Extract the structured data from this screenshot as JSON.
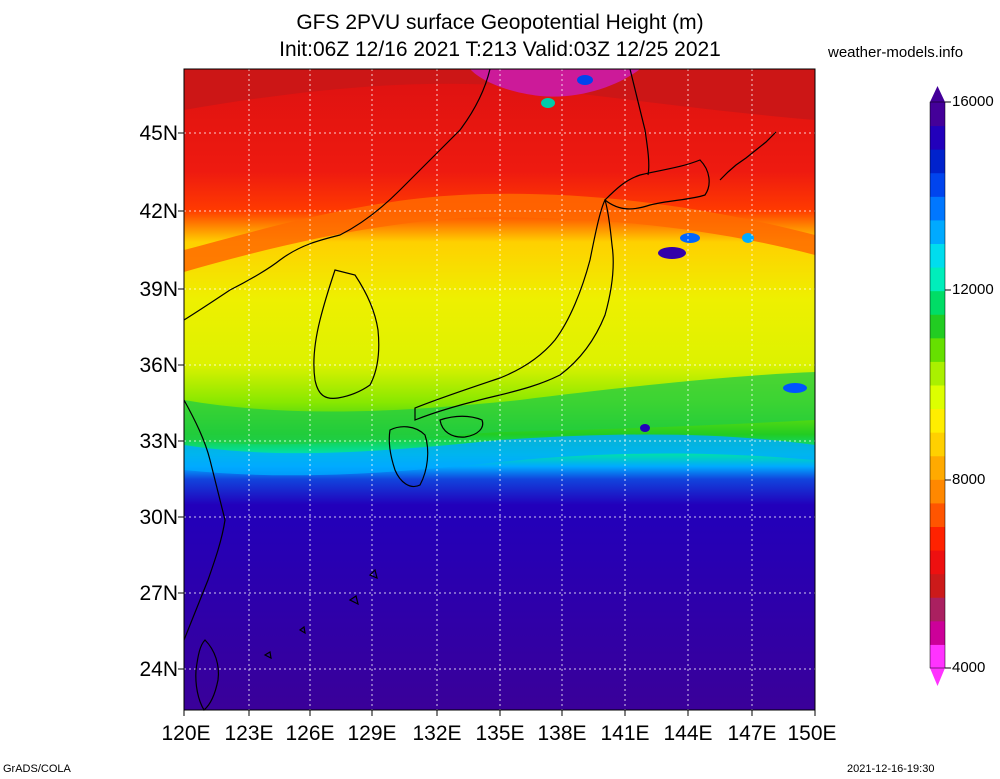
{
  "title_line1": "GFS 2PVU surface Geopotential Height (m)",
  "title_line2": "Init:06Z 12/16 2021 T:213 Valid:03Z 12/25 2021",
  "site": "weather-models.info",
  "lat_labels": [
    "45N",
    "42N",
    "39N",
    "36N",
    "33N",
    "30N",
    "27N",
    "24N"
  ],
  "lon_labels": [
    "120E",
    "123E",
    "126E",
    "129E",
    "132E",
    "135E",
    "138E",
    "141E",
    "144E",
    "147E",
    "150E"
  ],
  "colorbar": {
    "labels": [
      "16000",
      "12000",
      "8000",
      "4000"
    ],
    "min": 4000,
    "max": 16000,
    "colors": [
      "#ff33ff",
      "#cc0099",
      "#aa2060",
      "#cc1a1a",
      "#ee1010",
      "#ff2200",
      "#ff5500",
      "#ff8800",
      "#ffaa00",
      "#ffd000",
      "#ffee00",
      "#ddff00",
      "#aaf000",
      "#66e000",
      "#22cc22",
      "#00dd66",
      "#00eebb",
      "#00ddee",
      "#00aaff",
      "#0077ff",
      "#0044ee",
      "#0022cc",
      "#2200bb",
      "#440099"
    ]
  },
  "footer_left": "GrADS/COLA",
  "footer_right": "2021-12-16-19:30"
}
